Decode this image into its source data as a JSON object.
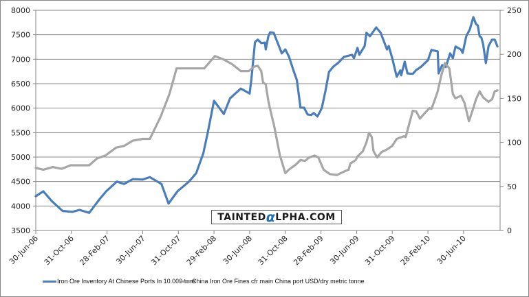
{
  "chart_data": {
    "type": "line",
    "title": "",
    "x_tick_positions_months": [
      0,
      4,
      8,
      12,
      16,
      20,
      24,
      28,
      32,
      36,
      40,
      44,
      48
    ],
    "x_tick_labels": [
      "30-Jun-06",
      "31-Oct-06",
      "28-Feb-07",
      "30-Jun-07",
      "31-Oct-07",
      "29-Feb-08",
      "30-Jun-08",
      "31-Oct-08",
      "28-Feb-09",
      "30-Jun-09",
      "31-Oct-09",
      "28-Feb-10",
      "30-Jun-10"
    ],
    "xlim": [
      0,
      52.1
    ],
    "y_left": {
      "ylim": [
        3500,
        8000
      ],
      "ticks": [
        "3500",
        "4000",
        "4500",
        "5000",
        "5500",
        "6000",
        "6500",
        "7000",
        "7500",
        "8000"
      ]
    },
    "y_right": {
      "ylim": [
        0,
        250
      ],
      "ticks": [
        "0",
        "50",
        "100",
        "150",
        "200",
        "250"
      ]
    },
    "grid": true,
    "legend_position": "bottom",
    "series": [
      {
        "name": "Iron Ore Inventory At Chinese Ports In 10.000 tons",
        "axis": "left",
        "color": "#4a7ebb",
        "x": [
          0,
          0.85,
          1.8,
          3.0,
          4.1,
          4.9,
          6.0,
          7.2,
          7.9,
          9.1,
          9.9,
          10.9,
          12.0,
          12.8,
          14.1,
          14.9,
          15.9,
          17.2,
          18.0,
          18.8,
          19.3,
          20.0,
          21.1,
          21.8,
          23.0,
          24.0,
          24.2,
          24.6,
          24.9,
          25.3,
          25.7,
          25.8,
          26.1,
          26.3,
          26.7,
          27.6,
          28.0,
          28.4,
          28.9,
          29.3,
          29.7,
          30.1,
          30.5,
          30.9,
          31.2,
          31.6,
          31.9,
          32.1,
          32.5,
          32.9,
          33.4,
          33.9,
          34.6,
          35.5,
          35.7,
          36.1,
          36.3,
          36.9,
          37.1,
          37.5,
          38.2,
          38.7,
          39.4,
          39.6,
          40.0,
          40.5,
          40.9,
          41.0,
          41.4,
          41.7,
          42.3,
          42.7,
          43.2,
          44.0,
          44.4,
          45.1,
          45.2,
          45.6,
          46.0,
          46.5,
          46.8,
          47.1,
          47.7,
          47.9,
          48.3,
          48.7,
          49.1,
          49.4,
          49.6,
          49.8,
          50.0,
          50.2,
          50.5,
          50.8,
          51.2,
          51.5,
          51.8
        ],
        "values": [
          4200,
          4300,
          4100,
          3900,
          3880,
          3920,
          3860,
          4150,
          4300,
          4500,
          4450,
          4550,
          4540,
          4590,
          4450,
          4050,
          4300,
          4500,
          4670,
          5080,
          5500,
          6150,
          5880,
          6200,
          6400,
          6300,
          6600,
          7350,
          7400,
          7330,
          7340,
          7200,
          7470,
          7550,
          7540,
          7120,
          7200,
          7060,
          6780,
          6570,
          6010,
          6010,
          5870,
          5860,
          5900,
          5830,
          5930,
          6010,
          6350,
          6740,
          6850,
          6920,
          7050,
          7090,
          7020,
          7230,
          7090,
          7270,
          7540,
          7470,
          7650,
          7540,
          7200,
          7270,
          7020,
          6640,
          6770,
          6670,
          6950,
          6710,
          6700,
          6780,
          6840,
          6980,
          7190,
          7160,
          6710,
          6880,
          6840,
          7120,
          7020,
          7260,
          7200,
          7130,
          7470,
          7610,
          7860,
          7720,
          7690,
          7470,
          7440,
          7300,
          6920,
          7270,
          7400,
          7400,
          7260
        ]
      },
      {
        "name": "China Iron Ore Fines cfr main China port USD/dry metric tonne",
        "axis": "right",
        "color": "#a6a6a6",
        "x": [
          0,
          0.85,
          1.9,
          2.9,
          3.9,
          6.0,
          6.9,
          7.8,
          9.0,
          9.9,
          10.9,
          12.0,
          12.8,
          14.0,
          15.0,
          15.8,
          18.9,
          20.1,
          21.1,
          22.0,
          23.0,
          23.9,
          24.5,
          24.9,
          25.3,
          25.5,
          25.8,
          26.1,
          26.5,
          26.7,
          27.4,
          28.0,
          28.4,
          29.2,
          29.7,
          30.2,
          30.7,
          31.3,
          31.7,
          32.3,
          33.0,
          33.8,
          34.6,
          35.1,
          35.3,
          35.9,
          36.1,
          36.7,
          37.1,
          37.4,
          37.7,
          37.9,
          38.3,
          38.8,
          39.4,
          40.0,
          40.5,
          41.3,
          41.5,
          42.3,
          42.7,
          43.1,
          43.8,
          44.2,
          44.4,
          44.8,
          45.1,
          45.5,
          45.9,
          46.4,
          46.8,
          47.1,
          47.7,
          48.1,
          48.6,
          49.0,
          49.4,
          49.8,
          50.2,
          50.8,
          51.2,
          51.5,
          51.8
        ],
        "values": [
          71,
          69,
          72,
          70,
          74,
          74,
          82,
          85,
          94,
          96,
          102,
          104,
          104,
          129,
          155,
          184,
          184,
          198,
          194,
          189,
          181,
          181,
          186,
          187,
          181,
          168,
          166,
          147,
          129,
          121,
          85,
          65,
          69,
          75,
          80,
          79,
          83,
          85,
          83,
          69,
          64,
          63,
          67,
          69,
          76,
          80,
          84,
          90,
          100,
          111,
          106,
          90,
          83,
          89,
          92,
          96,
          104,
          107,
          106,
          136,
          135,
          127,
          135,
          139,
          138,
          149,
          158,
          176,
          190,
          184,
          155,
          150,
          153,
          145,
          124,
          136,
          149,
          158,
          151,
          146,
          149,
          158,
          159
        ]
      }
    ]
  },
  "logo": {
    "text_before": "TAINTED",
    "alpha": "α",
    "text_after": "LPHA.COM",
    "accent_color": "#1f6fb5"
  }
}
